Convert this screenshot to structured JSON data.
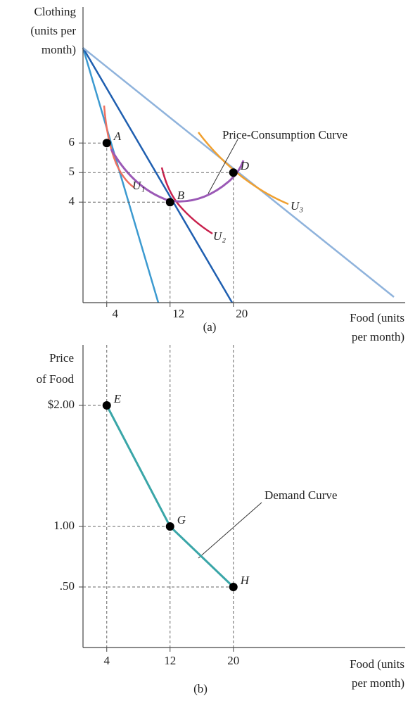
{
  "chart_data": [
    {
      "type": "scatter",
      "y_label": [
        "Clothing",
        "(units per",
        "month)"
      ],
      "x_label": [
        "Food (units",
        "per month)"
      ],
      "caption": "(a)",
      "x": [
        4,
        12,
        20
      ],
      "values": [
        6,
        4,
        5
      ],
      "point_labels": [
        "A",
        "B",
        "D"
      ],
      "xlim": [
        1,
        41
      ],
      "ylim": [
        0.6,
        10.6
      ],
      "xticks": [
        4,
        12,
        20
      ],
      "yticks": [
        4,
        5,
        6
      ],
      "color": "#000000",
      "annotations": [
        "Price-Consumption Curve",
        "U₁",
        "U₂",
        "U₃"
      ]
    },
    {
      "type": "line",
      "y_label": [
        "Price",
        "of Food"
      ],
      "x_label": [
        "Food (units",
        "per month)"
      ],
      "caption": "(b)",
      "x": [
        4,
        12,
        20
      ],
      "values": [
        2,
        1,
        0.5
      ],
      "point_labels": [
        "E",
        "G",
        "H"
      ],
      "xlim": [
        1,
        41
      ],
      "ylim": [
        0,
        2.5
      ],
      "xticks": [
        4,
        12,
        20
      ],
      "yticks": [
        {
          "value": 0.5,
          "label": ".50"
        },
        {
          "value": 1,
          "label": "1.00"
        },
        {
          "value": 2,
          "label": "$2.00"
        }
      ],
      "color": "#3aa6a8",
      "annotations": [
        "Demand Curve"
      ]
    }
  ]
}
